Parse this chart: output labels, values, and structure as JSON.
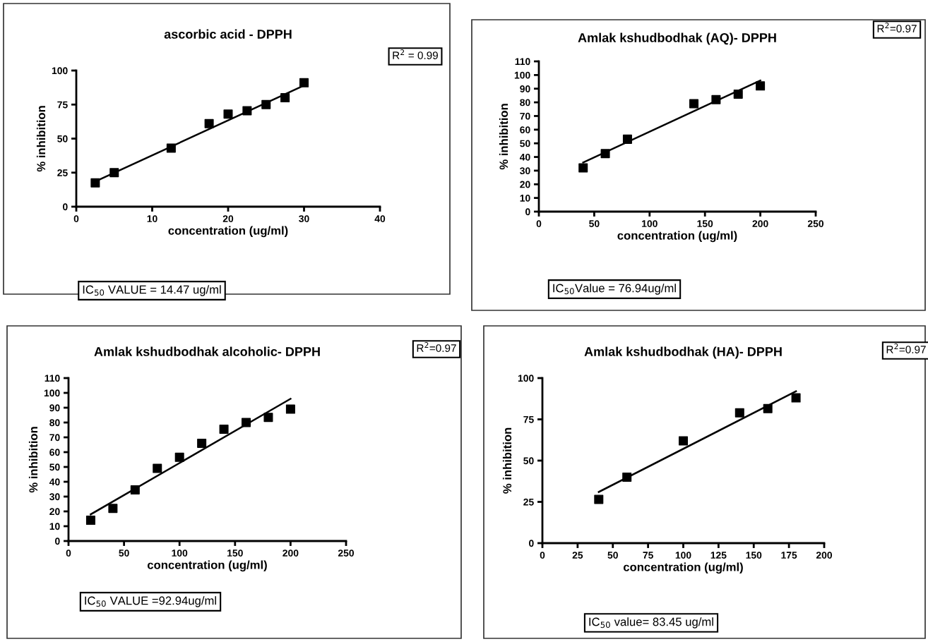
{
  "chart_data": [
    {
      "type": "scatter",
      "title": "ascorbic acid - DPPH",
      "xlabel": "concentration (ug/ml)",
      "ylabel": "% inhibition",
      "marker": "square",
      "grid": false,
      "legend": false,
      "xlim": [
        0,
        40
      ],
      "xticks": [
        0,
        10,
        20,
        30,
        40
      ],
      "ylim": [
        0,
        100
      ],
      "yticks": [
        0,
        25,
        50,
        75,
        100
      ],
      "annotations": [
        "R$^{2}$ = 0.99",
        "IC$_{50}$ VALUE = 14.47 ug/ml"
      ],
      "series": [
        {
          "color": "#000000",
          "x": [
            2.5,
            5,
            12.5,
            17.5,
            20,
            22.5,
            25,
            27.5,
            30
          ],
          "values": [
            17.5,
            25,
            43,
            61,
            68,
            70.5,
            75,
            80,
            91
          ]
        },
        {
          "type": "line",
          "marker": "none",
          "color": "#000000",
          "x": [
            2.5,
            30
          ],
          "values": [
            18.5,
            89
          ]
        }
      ]
    },
    {
      "type": "scatter",
      "title": "Amlak kshudbodhak (AQ)- DPPH",
      "xlabel": "concentration (ug/ml)",
      "ylabel": "% inhibition",
      "marker": "square",
      "grid": false,
      "legend": false,
      "xlim": [
        0,
        250
      ],
      "xticks": [
        0,
        50,
        100,
        150,
        200,
        250
      ],
      "ylim": [
        0,
        110
      ],
      "yticks": [
        0,
        10,
        20,
        30,
        40,
        50,
        60,
        70,
        80,
        90,
        100,
        110
      ],
      "annotations": [
        "R$^{2}$=0.97",
        "IC$_{50}$Value = 76.94ug/ml"
      ],
      "series": [
        {
          "color": "#000000",
          "x": [
            40,
            60,
            80,
            140,
            160,
            180,
            200
          ],
          "values": [
            32,
            42.5,
            53,
            79,
            82,
            86,
            92
          ]
        },
        {
          "type": "line",
          "marker": "none",
          "color": "#000000",
          "x": [
            40,
            200
          ],
          "values": [
            36,
            96
          ]
        }
      ]
    },
    {
      "type": "scatter",
      "title": "Amlak kshudbodhak alcoholic- DPPH",
      "xlabel": "concentration (ug/ml)",
      "ylabel": "% inhibition",
      "marker": "square",
      "grid": false,
      "legend": false,
      "xlim": [
        0,
        250
      ],
      "xticks": [
        0,
        50,
        100,
        150,
        200,
        250
      ],
      "ylim": [
        0,
        110
      ],
      "yticks": [
        0,
        10,
        20,
        30,
        40,
        50,
        60,
        70,
        80,
        90,
        100,
        110
      ],
      "annotations": [
        "R$^{2}$=0.97",
        "IC$_{50}$ VALUE =92.94ug/ml"
      ],
      "series": [
        {
          "color": "#000000",
          "x": [
            20,
            40,
            60,
            80,
            100,
            120,
            140,
            160,
            180,
            200
          ],
          "values": [
            14,
            22,
            34.5,
            49,
            56.5,
            66,
            75.5,
            80,
            83.5,
            89
          ]
        },
        {
          "type": "line",
          "marker": "none",
          "color": "#000000",
          "x": [
            20,
            200
          ],
          "values": [
            18,
            96
          ]
        }
      ]
    },
    {
      "type": "scatter",
      "title": "Amlak kshudbodhak (HA)- DPPH",
      "xlabel": "concentration (ug/ml)",
      "ylabel": "% inhibition",
      "marker": "square",
      "grid": false,
      "legend": false,
      "xlim": [
        0,
        200
      ],
      "xticks": [
        0,
        25,
        50,
        75,
        100,
        125,
        150,
        175,
        200
      ],
      "ylim": [
        0,
        100
      ],
      "yticks": [
        0,
        25,
        50,
        75,
        100
      ],
      "annotations": [
        "R$^{2}$=0.97",
        "IC$_{50}$ value= 83.45 ug/ml"
      ],
      "series": [
        {
          "color": "#000000",
          "x": [
            40,
            60,
            100,
            140,
            160,
            180
          ],
          "values": [
            26.5,
            40,
            62,
            79,
            81.5,
            88
          ]
        },
        {
          "type": "line",
          "marker": "none",
          "color": "#000000",
          "x": [
            40,
            180
          ],
          "values": [
            31,
            92
          ]
        }
      ]
    }
  ]
}
